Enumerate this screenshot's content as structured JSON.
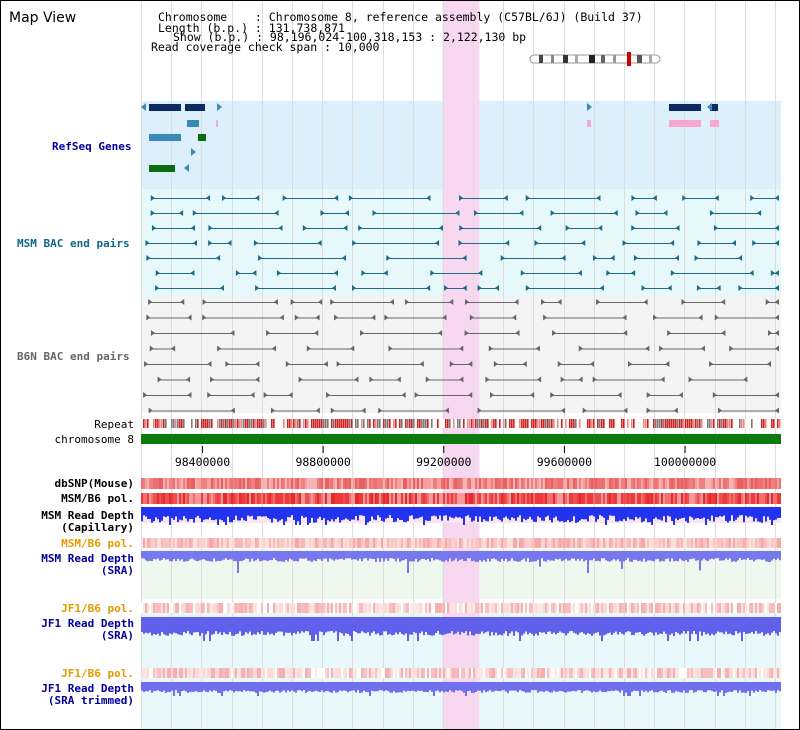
{
  "header": {
    "title": "Map View",
    "info_lines": [
      "Chromosome    : Chromosome 8, reference assembly (C57BL/6J) (Build 37)",
      "Length (b.p.) : 131,738,871",
      "Show (b.p.) : 98,196,024-100,318,153 : 2,122,130 bp",
      "Read coverage check span : 10,000"
    ]
  },
  "colors": {
    "refseq_bg": "#dceffa",
    "msm_bac_bg": "#e6f8fa",
    "b6n_bac_bg": "#f4f4f4",
    "highlight": "#f8d8f0",
    "gene_dark": "#0b2b5e",
    "gene_mid": "#3a8ab8",
    "gene_green": "#0a6b10",
    "gene_pink": "#f7a8d2",
    "bac_msm": "#1e6a88",
    "bac_b6n": "#666666",
    "chromosome": "#0c7a0c",
    "read_depth_blue": "#2233ee",
    "label_blue": "#000099",
    "label_teal": "#116688",
    "label_orange": "#e69a00"
  },
  "groups": {
    "refseq": "RefSeq Genes",
    "msm_bac": "MSM BAC end pairs",
    "b6n_bac": "B6N BAC end pairs"
  },
  "tracks": {
    "repeat": "Repeat",
    "chromosome": "chromosome 8",
    "dbsnp": "dbSNP(Mouse)",
    "msm_b6_pol": "MSM/B6 pol.",
    "msm_read_depth_capillary": [
      "MSM Read Depth",
      "(Capillary)"
    ],
    "msm_b6_pol_2": "MSM/B6 pol.",
    "msm_read_depth_sra": [
      "MSM Read Depth",
      "(SRA)"
    ],
    "jf1_b6_pol": "JF1/B6 pol.",
    "jf1_read_depth_sra": [
      "JF1 Read Depth",
      "(SRA)"
    ],
    "jf1_b6_pol_2": "JF1/B6 pol.",
    "jf1_read_depth_trimmed": [
      "JF1 Read Depth",
      "(SRA trimmed)"
    ]
  },
  "axis": {
    "ticks": [
      "98400000",
      "98800000",
      "99200000",
      "99600000",
      "100000000"
    ]
  },
  "chart_data": {
    "type": "genome-browser",
    "region_start": 98196024,
    "region_end": 100318153,
    "highlight": [
      99196024,
      99318153
    ],
    "tick_values": [
      98400000,
      98800000,
      99200000,
      99600000,
      100000000
    ]
  }
}
